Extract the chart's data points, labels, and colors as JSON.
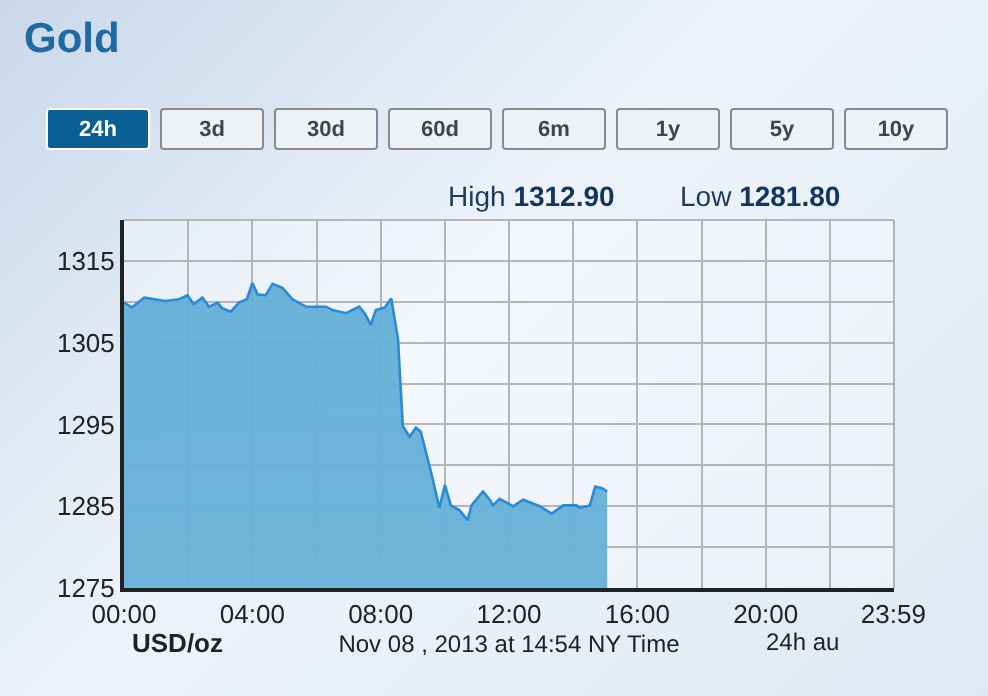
{
  "chart_data": {
    "type": "area",
    "title": "Gold",
    "xlabel": "Nov 08 , 2013 at 14:54 NY Time",
    "annotations": [
      "24h",
      "3d",
      "30d",
      "60d",
      "6m",
      "1y",
      "5y",
      "10y",
      "High 1312.90",
      "Low 1281.80",
      "USD/oz",
      "24h au"
    ],
    "x": [
      0,
      0.25,
      0.625,
      1.29,
      1.71,
      1.98,
      2.17,
      2.44,
      2.65,
      2.92,
      3.06,
      3.33,
      3.58,
      3.83,
      4.0,
      4.17,
      4.42,
      4.63,
      4.94,
      5.25,
      5.67,
      6.29,
      6.5,
      6.92,
      7.33,
      7.5,
      7.69,
      7.85,
      8.125,
      8.33,
      8.54,
      8.69,
      8.9,
      9.1,
      9.25,
      9.58,
      9.83,
      10.0,
      10.19,
      10.46,
      10.71,
      10.83,
      11.19,
      11.4,
      11.5,
      11.71,
      12.125,
      12.44,
      12.96,
      13.33,
      13.69,
      14.1,
      14.21,
      14.52,
      14.69,
      14.9,
      15.06
    ],
    "series": [
      {
        "color": "#2a8ad8",
        "values": [
          1309.9,
          1309.3,
          1310.5,
          1310.1,
          1310.3,
          1310.8,
          1309.7,
          1310.5,
          1309.4,
          1309.9,
          1309.2,
          1308.8,
          1309.9,
          1310.3,
          1312.3,
          1310.9,
          1310.8,
          1312.2,
          1311.7,
          1310.3,
          1309.4,
          1309.4,
          1309.0,
          1308.6,
          1309.4,
          1308.6,
          1307.2,
          1309.0,
          1309.3,
          1310.4,
          1305.4,
          1294.8,
          1293.5,
          1294.6,
          1294.1,
          1289.0,
          1284.8,
          1287.6,
          1285.1,
          1284.5,
          1283.3,
          1285.1,
          1286.8,
          1285.8,
          1285.1,
          1285.9,
          1285.0,
          1285.8,
          1285.0,
          1284.1,
          1285.1,
          1285.1,
          1284.8,
          1285.1,
          1287.4,
          1287.2,
          1286.8
        ]
      }
    ],
    "xlim": [
      0,
      24
    ],
    "xticks": [
      {
        "value": 0,
        "label": "00:00"
      },
      {
        "value": 2,
        "label": null
      },
      {
        "value": 4,
        "label": "04:00"
      },
      {
        "value": 6,
        "label": null
      },
      {
        "value": 8,
        "label": "08:00"
      },
      {
        "value": 10,
        "label": null
      },
      {
        "value": 12,
        "label": "12:00"
      },
      {
        "value": 14,
        "label": null
      },
      {
        "value": 16,
        "label": "16:00"
      },
      {
        "value": 18,
        "label": null
      },
      {
        "value": 20,
        "label": "20:00"
      },
      {
        "value": 22,
        "label": null
      },
      {
        "value": 23.98,
        "label": "23:59"
      }
    ],
    "ylim": [
      1275,
      1320
    ],
    "yticks": [
      1275,
      {
        "value": 1280,
        "label": null
      },
      1285,
      {
        "value": 1290,
        "label": null
      },
      1295,
      {
        "value": 1300,
        "label": null
      },
      1305,
      {
        "value": 1310,
        "label": null
      },
      1315,
      {
        "value": 1320,
        "label": null
      }
    ],
    "grid": true
  }
}
